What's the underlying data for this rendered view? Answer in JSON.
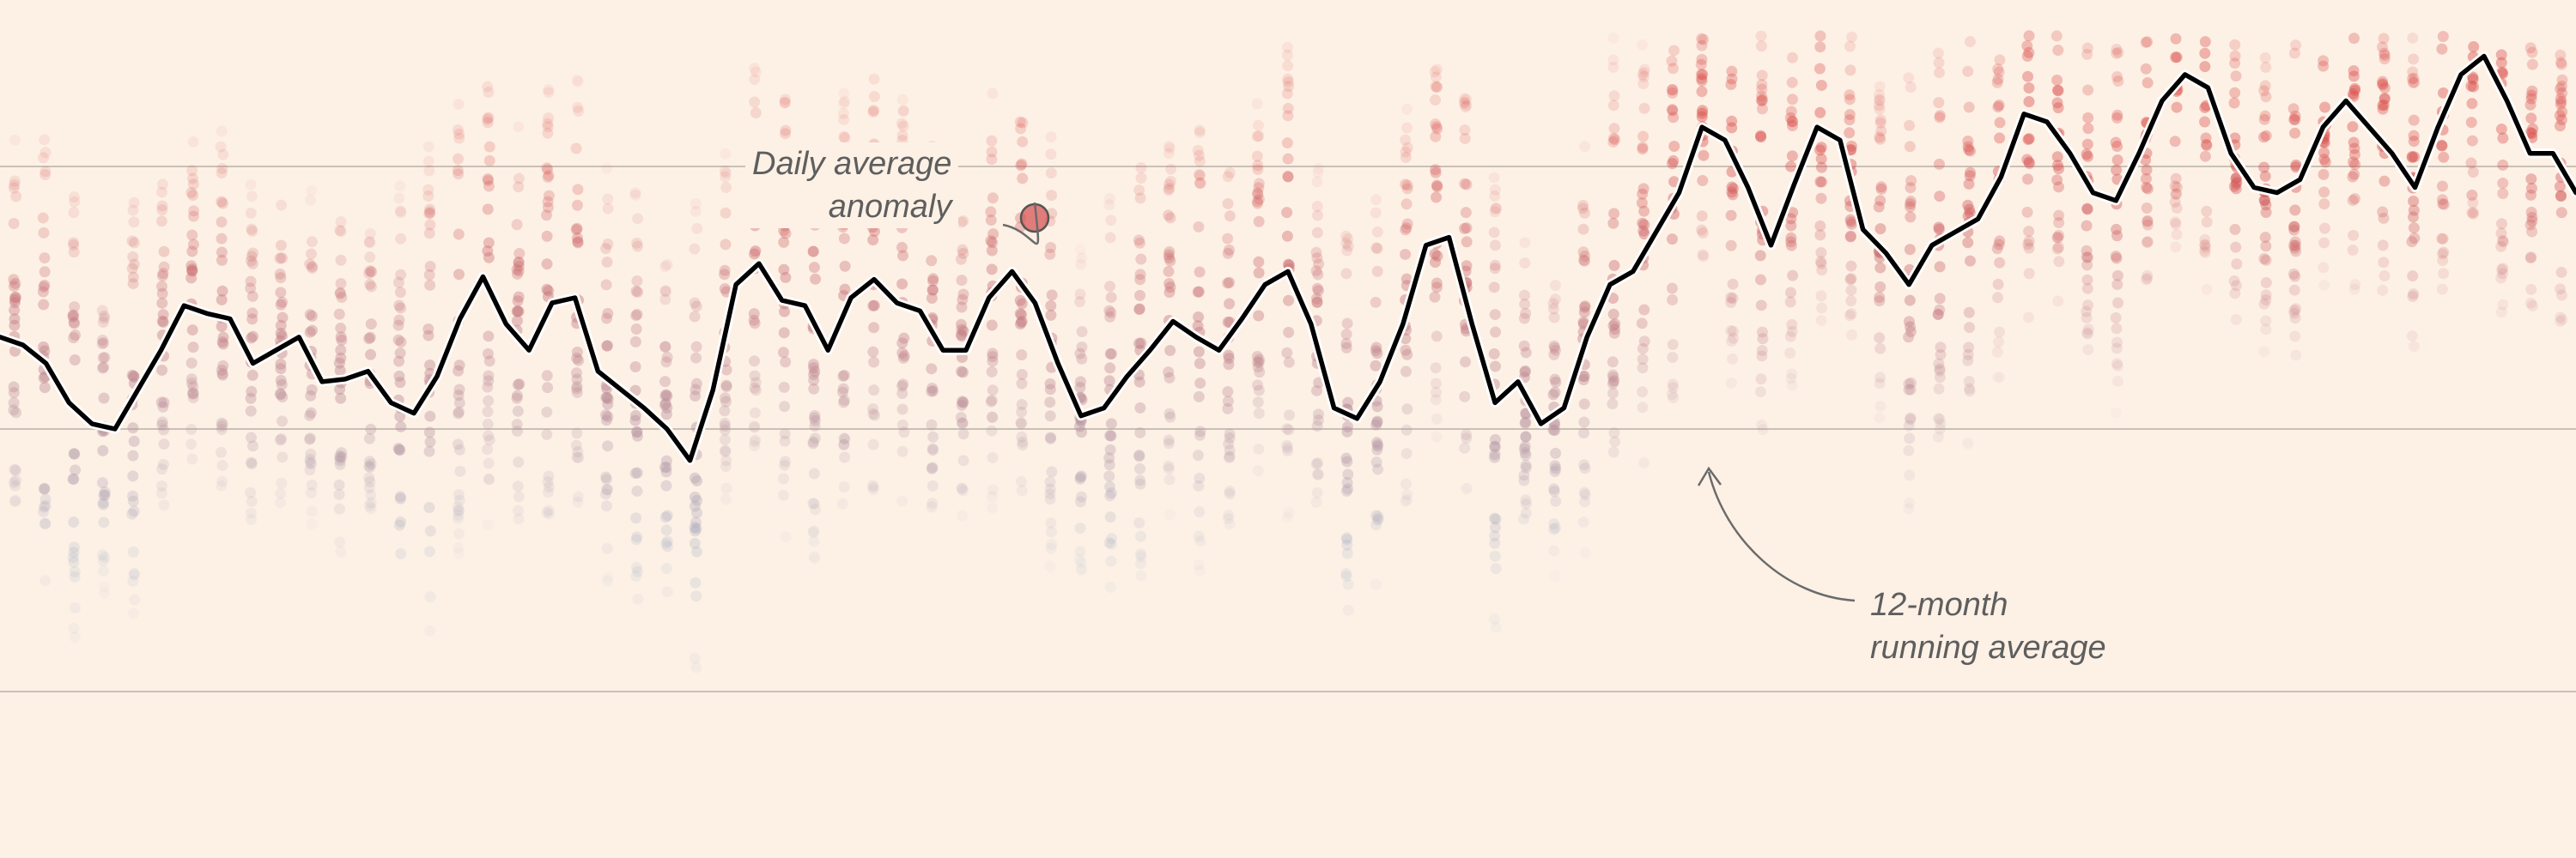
{
  "chart_data": {
    "type": "scatter",
    "grid": true,
    "ylim": [
      -1.5,
      1.5
    ],
    "gridlines": [
      1.0,
      0.0,
      -1.0
    ],
    "colors": {
      "background": "#fdf1e6",
      "gridline": "#c9c0b6",
      "warm_dots": "#d9504d",
      "cool_dots": "#a8b4c6",
      "running_line": "#000000",
      "annotation_text": "#5e5e5e"
    },
    "series": [
      {
        "kind": "dots",
        "months_shown": 87,
        "values_format": "approx. monthly range of daily anomaly [min, max]"
      },
      {
        "kind": "line",
        "values": [
          0.35,
          0.32,
          0.25,
          0.1,
          0.02,
          0.0,
          0.15,
          0.3,
          0.47,
          0.44,
          0.42,
          0.25,
          0.3,
          0.35,
          0.18,
          0.19,
          0.22,
          0.1,
          0.06,
          0.2,
          0.42,
          0.58,
          0.4,
          0.3,
          0.48,
          0.5,
          0.22,
          0.15,
          0.08,
          0.0,
          -0.12,
          0.15,
          0.55,
          0.63,
          0.49,
          0.47,
          0.3,
          0.5,
          0.57,
          0.48,
          0.45,
          0.3,
          0.3,
          0.5,
          0.6,
          0.48,
          0.25,
          0.05,
          0.08,
          0.2,
          0.3,
          0.41,
          0.35,
          0.3,
          0.42,
          0.55,
          0.6,
          0.4,
          0.08,
          0.04,
          0.18,
          0.4,
          0.7,
          0.73,
          0.4,
          0.1,
          0.18,
          0.02,
          0.08,
          0.35,
          0.55,
          0.6,
          0.75,
          0.9,
          1.15,
          1.1,
          0.92,
          0.7,
          0.93,
          1.15,
          1.1,
          0.76,
          0.67,
          0.55,
          0.7,
          0.75,
          0.8,
          0.96,
          1.2,
          1.17,
          1.05,
          0.9,
          0.87,
          1.05,
          1.25,
          1.35,
          1.3,
          1.05,
          0.92,
          0.9,
          0.95,
          1.15,
          1.25,
          1.15,
          1.05,
          0.92,
          1.15,
          1.35,
          1.42,
          1.25,
          1.05,
          1.05,
          0.9
        ]
      }
    ],
    "annotations": [
      {
        "lines": [
          "Daily average",
          "anomaly"
        ]
      },
      {
        "lines": [
          "12-month",
          "running average"
        ]
      }
    ]
  }
}
